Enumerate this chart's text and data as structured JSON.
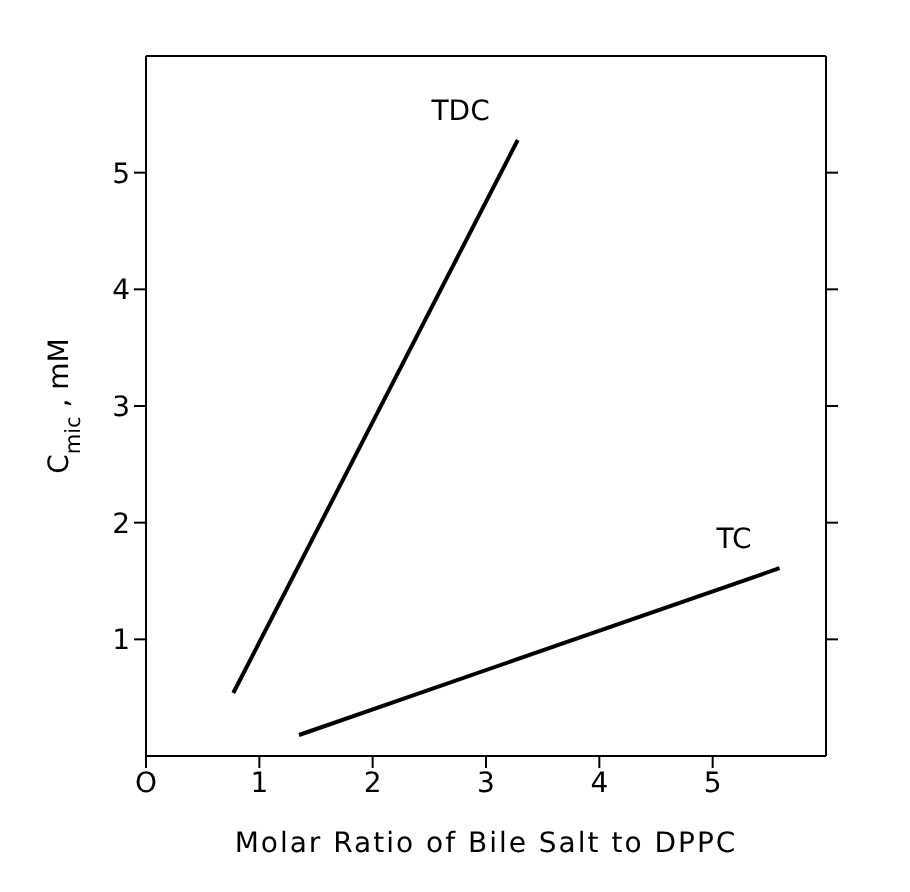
{
  "chart_data": {
    "type": "line",
    "xlabel": "Molar Ratio of Bile Salt to DPPC",
    "ylabel": "C$_{mic}$ , mM",
    "xlim": [
      0,
      6
    ],
    "ylim": [
      0,
      6
    ],
    "xticks": [
      {
        "value": 0,
        "label": "O"
      },
      1,
      2,
      3,
      4,
      5
    ],
    "yticks": [
      1,
      2,
      3,
      4,
      5
    ],
    "grid": false,
    "legend": false,
    "marker": "none",
    "line_style": "solid",
    "series": [
      {
        "name": "TDC",
        "color": "#000000",
        "x": [
          0.77,
          3.28
        ],
        "values": [
          0.54,
          5.28
        ]
      },
      {
        "name": "TC",
        "color": "#000000",
        "x": [
          1.35,
          5.59
        ],
        "values": [
          0.18,
          1.61
        ]
      }
    ]
  }
}
